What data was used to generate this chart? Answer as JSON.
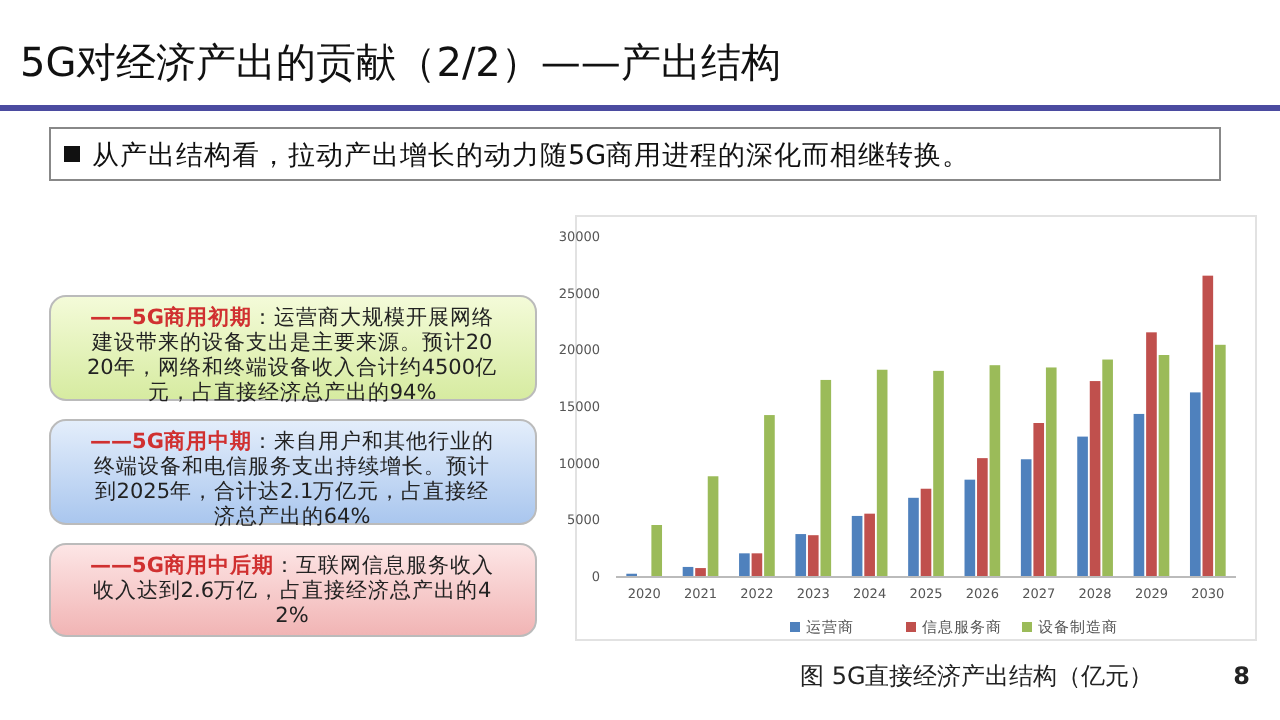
{
  "chart_data": {
    "type": "bar",
    "title": "5G对经济产出的贡献（2/2）——产出结构",
    "subtitle": "从产出结构看，拉动产出增长的动力随5G商用进程的深化而相继转换。",
    "categories": [
      "2020",
      "2021",
      "2022",
      "2023",
      "2024",
      "2025",
      "2026",
      "2027",
      "2028",
      "2029",
      "2030"
    ],
    "series": [
      {
        "name": "运营商",
        "color": "#4f81bd",
        "values": [
          200,
          800,
          2000,
          3700,
          5300,
          6900,
          8500,
          10300,
          12300,
          14300,
          16200
        ]
      },
      {
        "name": "信息服务商",
        "color": "#c0504d",
        "values": [
          0,
          700,
          2000,
          3600,
          5500,
          7700,
          10400,
          13500,
          17200,
          21500,
          26500
        ]
      },
      {
        "name": "设备制造商",
        "color": "#9bbb59",
        "values": [
          4500,
          8800,
          14200,
          17300,
          18200,
          18100,
          18600,
          18400,
          19100,
          19500,
          20400
        ]
      }
    ],
    "ylim": [
      0,
      30000
    ],
    "yticks": [
      0,
      5000,
      10000,
      15000,
      20000,
      25000,
      30000
    ],
    "grid": false,
    "legend": "bottom",
    "annotations": [
      "——5G商用初期：运营商大规模开展网络建设带来的设备支出是主要来源。预计2020年，网络和终端设备收入合计约4500亿元，占直接经济总产出的94%",
      "——5G商用中期：来自用户和其他行业的终端设备和电信服务支出持续增长。预计到2025年，合计达2.1万亿元，占直接经济总产出的64%",
      "——5G商用中后期：互联网信息服务收入收入达到2.6万亿，占直接经济总产出的42%",
      "图 5G直接经济产出结构（亿元）",
      "8"
    ]
  }
}
